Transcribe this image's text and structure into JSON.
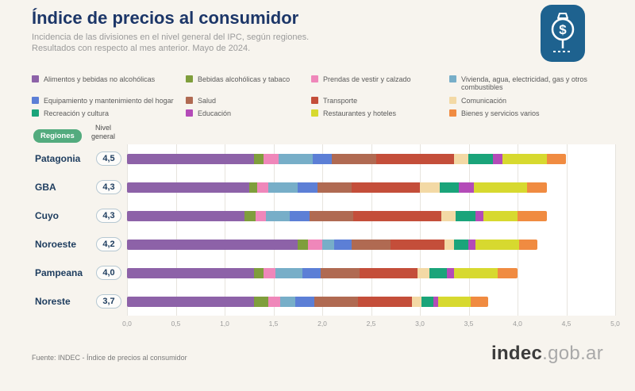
{
  "header": {
    "title": "Índice de precios al consumidor",
    "subtitle1": "Incidencia de las divisiones en el nivel general del IPC, según regiones.",
    "subtitle2": "Resultados con respecto al mes anterior. Mayo de 2024."
  },
  "logo": {
    "symbol": "$"
  },
  "table_header": {
    "regiones": "Regiones",
    "nivel_general": "Nivel\ngeneral"
  },
  "legend": [
    {
      "label": "Alimentos y bebidas no alcohólicas",
      "color": "#8d62a8"
    },
    {
      "label": "Bebidas alcohólicas y tabaco",
      "color": "#7f9e3c"
    },
    {
      "label": "Prendas de vestir y calzado",
      "color": "#ef87ba"
    },
    {
      "label": "Vivienda, agua, electricidad, gas y otros combustibles",
      "color": "#77aec8"
    },
    {
      "label": "Equipamiento y mantenimiento del hogar",
      "color": "#5c7fd6"
    },
    {
      "label": "Salud",
      "color": "#b06a52"
    },
    {
      "label": "Transporte",
      "color": "#c44e3a"
    },
    {
      "label": "Comunicación",
      "color": "#f3d9a5"
    },
    {
      "label": "Recreación y cultura",
      "color": "#1aa47a"
    },
    {
      "label": "Educación",
      "color": "#b44bb8"
    },
    {
      "label": "Restaurantes y hoteles",
      "color": "#d7d92f"
    },
    {
      "label": "Bienes y servicios varios",
      "color": "#f08b41"
    }
  ],
  "chart_data": {
    "type": "bar",
    "stacked": true,
    "orientation": "horizontal",
    "title": "Índice de precios al consumidor",
    "xlabel": "",
    "ylabel": "Regiones",
    "xlim": [
      0,
      5
    ],
    "grid": true,
    "legend_position": "top",
    "xticks": [
      "0,0",
      "0,5",
      "1,0",
      "1,5",
      "2,0",
      "2,5",
      "3,0",
      "3,5",
      "4,0",
      "4,5",
      "5,0"
    ],
    "categories": [
      "Patagonia",
      "GBA",
      "Cuyo",
      "Noroeste",
      "Pampeana",
      "Noreste"
    ],
    "nivel_general": [
      "4,5",
      "4,3",
      "4,3",
      "4,2",
      "4,0",
      "3,7"
    ],
    "series": [
      {
        "name": "Alimentos y bebidas no alcohólicas",
        "color": "#8d62a8",
        "values": [
          1.3,
          1.25,
          1.2,
          1.75,
          1.3,
          1.3
        ]
      },
      {
        "name": "Bebidas alcohólicas y tabaco",
        "color": "#7f9e3c",
        "values": [
          0.1,
          0.08,
          0.12,
          0.1,
          0.1,
          0.15
        ]
      },
      {
        "name": "Prendas de vestir y calzado",
        "color": "#ef87ba",
        "values": [
          0.15,
          0.12,
          0.1,
          0.15,
          0.12,
          0.12
        ]
      },
      {
        "name": "Vivienda, agua, electricidad, gas y otros combustibles",
        "color": "#77aec8",
        "values": [
          0.35,
          0.3,
          0.25,
          0.12,
          0.28,
          0.15
        ]
      },
      {
        "name": "Equipamiento y mantenimiento del hogar",
        "color": "#5c7fd6",
        "values": [
          0.2,
          0.2,
          0.2,
          0.18,
          0.18,
          0.2
        ]
      },
      {
        "name": "Salud",
        "color": "#b06a52",
        "values": [
          0.45,
          0.35,
          0.45,
          0.4,
          0.4,
          0.45
        ]
      },
      {
        "name": "Transporte",
        "color": "#c44e3a",
        "values": [
          0.8,
          0.7,
          0.9,
          0.55,
          0.6,
          0.55
        ]
      },
      {
        "name": "Comunicación",
        "color": "#f3d9a5",
        "values": [
          0.15,
          0.2,
          0.15,
          0.1,
          0.12,
          0.1
        ]
      },
      {
        "name": "Recreación y cultura",
        "color": "#1aa47a",
        "values": [
          0.25,
          0.2,
          0.2,
          0.15,
          0.18,
          0.12
        ]
      },
      {
        "name": "Educación",
        "color": "#b44bb8",
        "values": [
          0.1,
          0.15,
          0.08,
          0.07,
          0.07,
          0.05
        ]
      },
      {
        "name": "Restaurantes y hoteles",
        "color": "#d7d92f",
        "values": [
          0.45,
          0.55,
          0.35,
          0.45,
          0.45,
          0.33
        ]
      },
      {
        "name": "Bienes y servicios varios",
        "color": "#f08b41",
        "values": [
          0.2,
          0.2,
          0.3,
          0.18,
          0.2,
          0.18
        ]
      }
    ]
  },
  "footer": {
    "source": "Fuente: INDEC - Índice de precios al consumidor",
    "brand_bold": "indec",
    "brand_light": ".gob.ar"
  }
}
